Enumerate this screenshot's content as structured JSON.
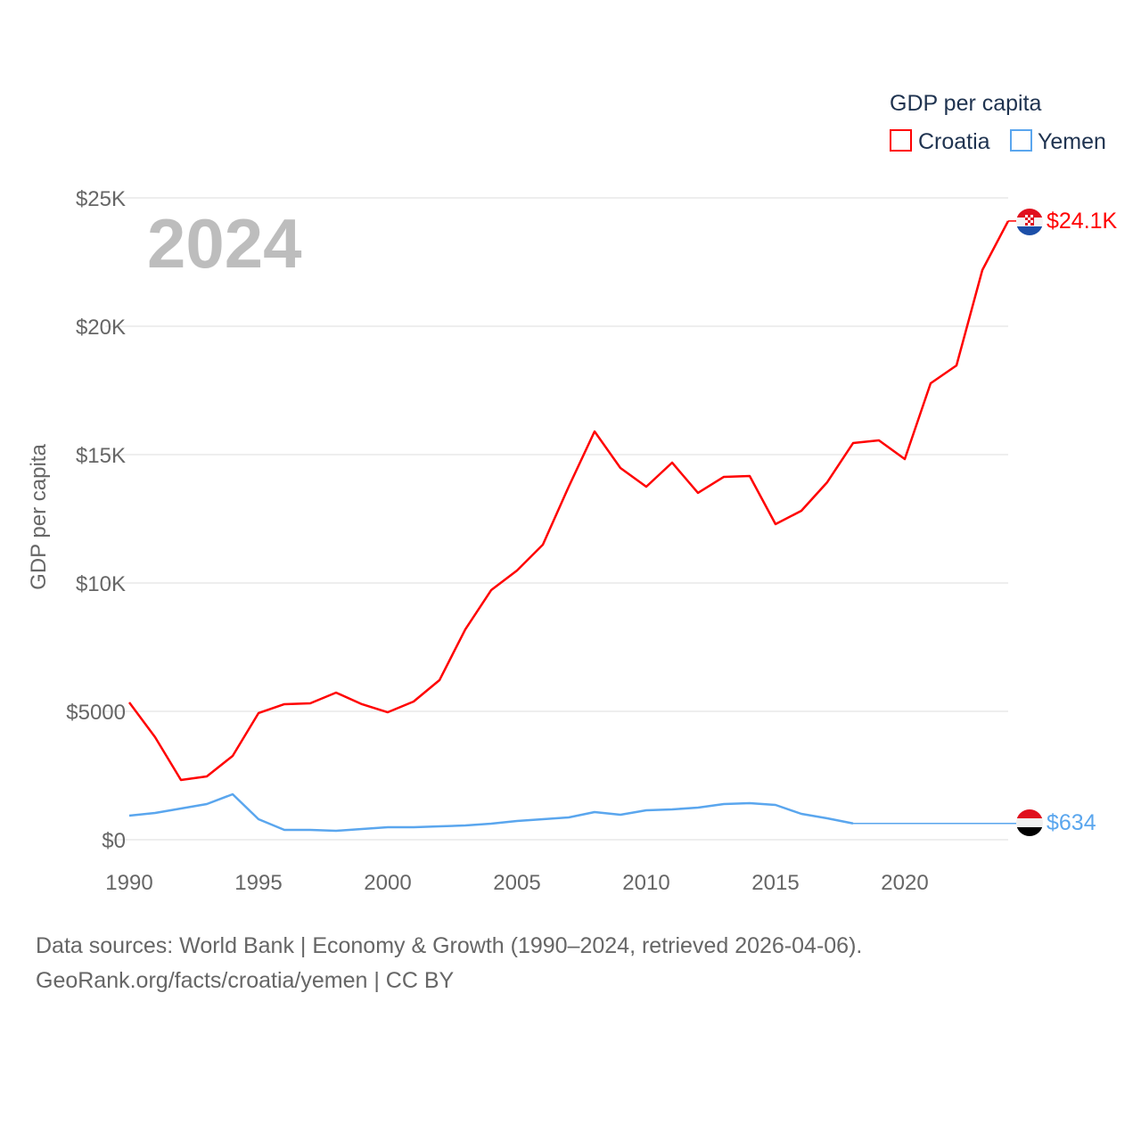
{
  "chart_data": {
    "type": "line",
    "title": "",
    "year_label": "2024",
    "ylabel": "GDP per capita",
    "xlabel": "",
    "xlim": [
      1990,
      2024
    ],
    "ylim": [
      0,
      25000
    ],
    "x_ticks": [
      1990,
      1995,
      2000,
      2005,
      2010,
      2015,
      2020
    ],
    "x_tick_labels": [
      "1990",
      "1995",
      "2000",
      "2005",
      "2010",
      "2015",
      "2020"
    ],
    "y_ticks": [
      0,
      5000,
      10000,
      15000,
      20000,
      25000
    ],
    "y_tick_labels": [
      "$0",
      "$5000",
      "$10K",
      "$15K",
      "$20K",
      "$25K"
    ],
    "grid": true,
    "legend": {
      "title": "GDP per capita",
      "placement": "top-right"
    },
    "x": [
      1990,
      1991,
      1992,
      1993,
      1994,
      1995,
      1996,
      1997,
      1998,
      1999,
      2000,
      2001,
      2002,
      2003,
      2004,
      2005,
      2006,
      2007,
      2008,
      2009,
      2010,
      2011,
      2012,
      2013,
      2014,
      2015,
      2016,
      2017,
      2018,
      2019,
      2020,
      2021,
      2022,
      2023,
      2024
    ],
    "series": [
      {
        "name": "Croatia",
        "color": "#ff0000",
        "end_label": "$24.1K",
        "flag": "croatia-flag",
        "values": [
          5347,
          3993,
          2326,
          2465,
          3264,
          4931,
          5278,
          5313,
          5729,
          5278,
          4965,
          5382,
          6215,
          8194,
          9722,
          10486,
          11493,
          13750,
          15903,
          14479,
          13750,
          14688,
          13507,
          14132,
          14167,
          12292,
          12813,
          13924,
          15451,
          15556,
          14826,
          17778,
          18472,
          22188,
          24100
        ]
      },
      {
        "name": "Yemen",
        "color": "#5aa6ee",
        "end_label": "$634",
        "flag": "yemen-flag",
        "values": [
          938,
          1042,
          1215,
          1389,
          1771,
          799,
          382,
          382,
          347,
          417,
          486,
          486,
          521,
          556,
          625,
          729,
          799,
          868,
          1076,
          972,
          1146,
          1181,
          1250,
          1389,
          1424,
          1354,
          1007,
          833,
          634,
          null,
          null,
          null,
          null,
          null,
          null
        ],
        "carried_value": 634
      }
    ]
  },
  "footer": {
    "line1": "Data sources: World Bank | Economy & Growth (1990–2024, retrieved 2026-04-06).",
    "line2": "GeoRank.org/facts/croatia/yemen | CC BY"
  }
}
